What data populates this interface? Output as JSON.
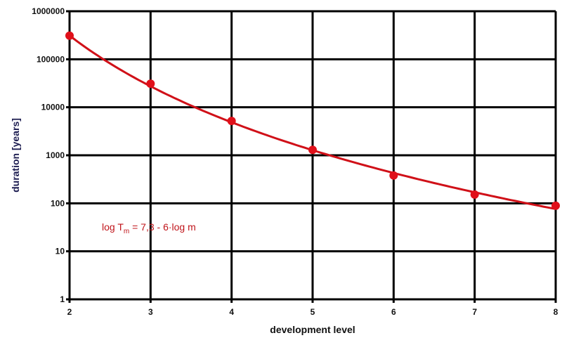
{
  "chart_data": {
    "type": "line",
    "title": "",
    "xlabel": "development level",
    "ylabel": "duration [years]",
    "x_ticks": [
      "2",
      "3",
      "4",
      "5",
      "6",
      "7",
      "8"
    ],
    "y_ticks": [
      "1",
      "10",
      "100",
      "1000",
      "10000",
      "100000",
      "1000000"
    ],
    "xlim": [
      2,
      8
    ],
    "ylim": [
      1,
      1000000
    ],
    "y_scale": "log",
    "grid": true,
    "annotation": {
      "prefix": "log T",
      "subscript": "m",
      "suffix": " = 7,3 - 6·log m"
    },
    "fit": {
      "intercept": 7.3,
      "slope": -6
    },
    "series": [
      {
        "x": [
          2,
          3,
          4,
          5,
          6,
          7,
          8
        ],
        "y": [
          310000,
          31000,
          5200,
          1300,
          380,
          152,
          89
        ]
      }
    ],
    "colors": {
      "series": "#e0101a",
      "fit": "#d01018",
      "grid": "#000000",
      "ylabel": "#1c1c50",
      "annotation": "#c0141a"
    }
  }
}
